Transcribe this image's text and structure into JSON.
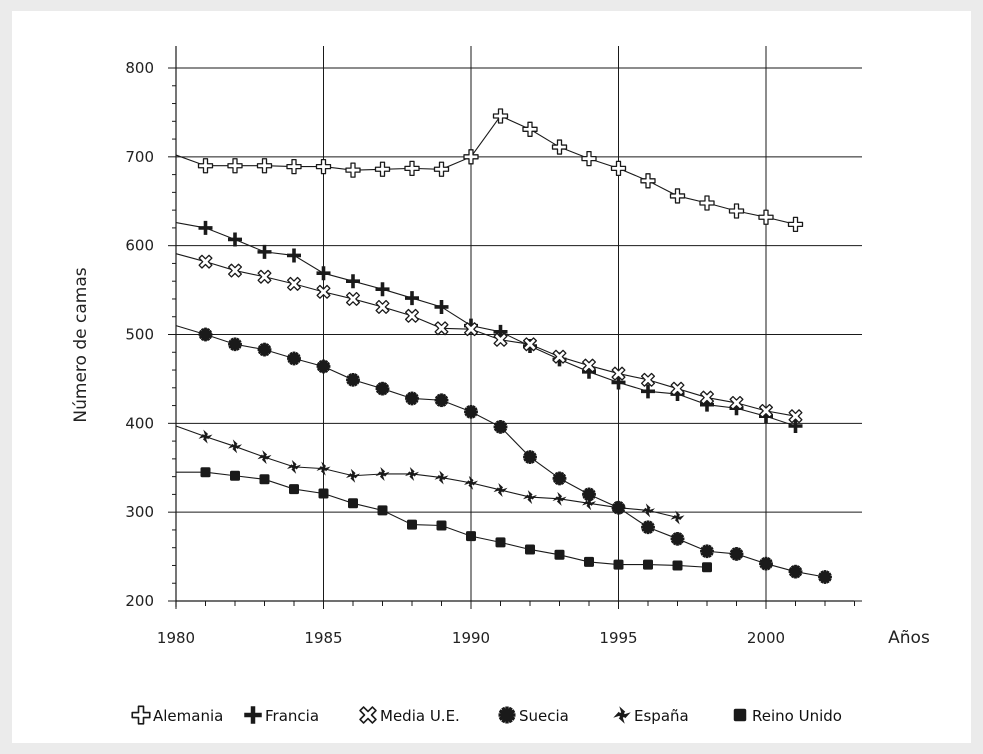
{
  "chart_data": {
    "type": "line",
    "title": "",
    "xlabel": "Años",
    "ylabel": "Número de camas",
    "xlim": [
      1980,
      2003
    ],
    "ylim": [
      200,
      800
    ],
    "x_ticks": [
      1980,
      1985,
      1990,
      1995,
      2000
    ],
    "y_ticks": [
      200,
      300,
      400,
      500,
      600,
      700,
      800
    ],
    "grid": true,
    "legend_position": "bottom",
    "series": [
      {
        "name": "Alemania",
        "marker": "outline-cross",
        "x": [
          1981,
          1982,
          1983,
          1984,
          1985,
          1986,
          1987,
          1988,
          1989,
          1990,
          1991,
          1992,
          1993,
          1994,
          1995,
          1996,
          1997,
          1998,
          1999,
          2000,
          2001
        ],
        "y": [
          690,
          690,
          690,
          689,
          689,
          685,
          686,
          687,
          686,
          700,
          746,
          731,
          711,
          698,
          687,
          673,
          656,
          648,
          639,
          632,
          624
        ],
        "lead_in": {
          "x": 1980,
          "y": 702
        }
      },
      {
        "name": "Francia",
        "marker": "cross",
        "x": [
          1981,
          1982,
          1983,
          1984,
          1985,
          1986,
          1987,
          1988,
          1989,
          1990,
          1991,
          1992,
          1993,
          1994,
          1995,
          1996,
          1997,
          1998,
          1999,
          2000,
          2001
        ],
        "y": [
          620,
          607,
          593,
          589,
          569,
          560,
          551,
          541,
          531,
          510,
          503,
          487,
          472,
          458,
          446,
          436,
          433,
          421,
          417,
          408,
          397
        ],
        "lead_in": {
          "x": 1980,
          "y": 626
        }
      },
      {
        "name": "Media U.E.",
        "marker": "x-cross",
        "x": [
          1981,
          1982,
          1983,
          1984,
          1985,
          1986,
          1987,
          1988,
          1989,
          1990,
          1991,
          1992,
          1993,
          1994,
          1995,
          1996,
          1997,
          1998,
          1999,
          2000,
          2001
        ],
        "y": [
          582,
          572,
          565,
          557,
          548,
          540,
          531,
          521,
          507,
          506,
          494,
          489,
          475,
          465,
          456,
          449,
          439,
          429,
          423,
          414,
          408
        ],
        "lead_in": {
          "x": 1980,
          "y": 591
        }
      },
      {
        "name": "Suecia",
        "marker": "gear",
        "x": [
          1981,
          1982,
          1983,
          1984,
          1985,
          1986,
          1987,
          1988,
          1989,
          1990,
          1991,
          1992,
          1993,
          1994,
          1995,
          1996,
          1997,
          1998,
          1999,
          2000,
          2001,
          2002
        ],
        "y": [
          500,
          489,
          483,
          473,
          464,
          449,
          439,
          428,
          426,
          413,
          396,
          362,
          338,
          320,
          305,
          283,
          270,
          256,
          253,
          242,
          233,
          227
        ],
        "lead_in": {
          "x": 1980,
          "y": 510
        }
      },
      {
        "name": "España",
        "marker": "pinwheel",
        "x": [
          1981,
          1982,
          1983,
          1984,
          1985,
          1986,
          1987,
          1988,
          1989,
          1990,
          1991,
          1992,
          1993,
          1994,
          1995,
          1996,
          1997
        ],
        "y": [
          385,
          374,
          362,
          351,
          349,
          341,
          343,
          343,
          339,
          333,
          325,
          317,
          315,
          310,
          305,
          302,
          294
        ],
        "lead_in": {
          "x": 1980,
          "y": 397
        }
      },
      {
        "name": "Reino Unido",
        "marker": "square",
        "x": [
          1981,
          1982,
          1983,
          1984,
          1985,
          1986,
          1987,
          1988,
          1989,
          1990,
          1991,
          1992,
          1993,
          1994,
          1995,
          1996,
          1997,
          1998
        ],
        "y": [
          345,
          341,
          337,
          326,
          321,
          310,
          302,
          286,
          285,
          273,
          266,
          258,
          252,
          244,
          241,
          241,
          240,
          238
        ],
        "lead_in": {
          "x": 1980,
          "y": 345
        }
      }
    ]
  },
  "legend": {
    "items": [
      {
        "label": "Alemania",
        "marker": "outline-cross"
      },
      {
        "label": "Francia",
        "marker": "cross"
      },
      {
        "label": "Media U.E.",
        "marker": "x-cross"
      },
      {
        "label": "Suecia",
        "marker": "gear"
      },
      {
        "label": "España",
        "marker": "pinwheel"
      },
      {
        "label": "Reino Unido",
        "marker": "square"
      }
    ]
  },
  "colors": {
    "background": "#ebebeb",
    "plot_background": "#ffffff",
    "line": "#1a1a1a",
    "grid": "#1a1a1a"
  }
}
